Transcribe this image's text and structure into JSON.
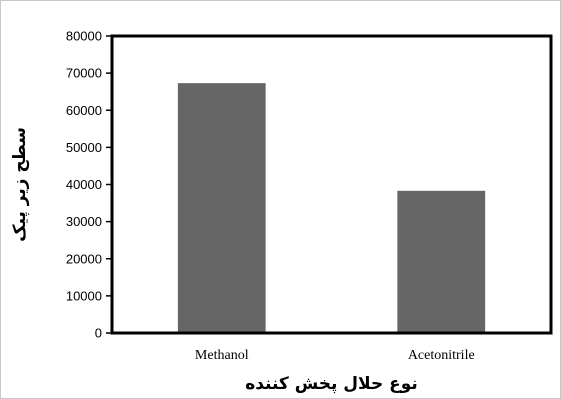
{
  "chart_data": {
    "type": "bar",
    "categories": [
      "Methanol",
      "Acetonitrile"
    ],
    "values": [
      67300,
      38300
    ],
    "title": "",
    "xlabel": "نوع حلال پخش کننده",
    "ylabel": "سطح زیر پیک",
    "ylim": [
      0,
      80000
    ],
    "yticks": [
      0,
      10000,
      20000,
      30000,
      40000,
      50000,
      60000,
      70000,
      80000
    ],
    "ytick_labels": [
      "0",
      "10000",
      "20000",
      "30000",
      "40000",
      "50000",
      "60000",
      "70000",
      "80000"
    ],
    "grid": false,
    "legend": "none",
    "bar_color": "#666666",
    "frame_color": "#000000"
  }
}
